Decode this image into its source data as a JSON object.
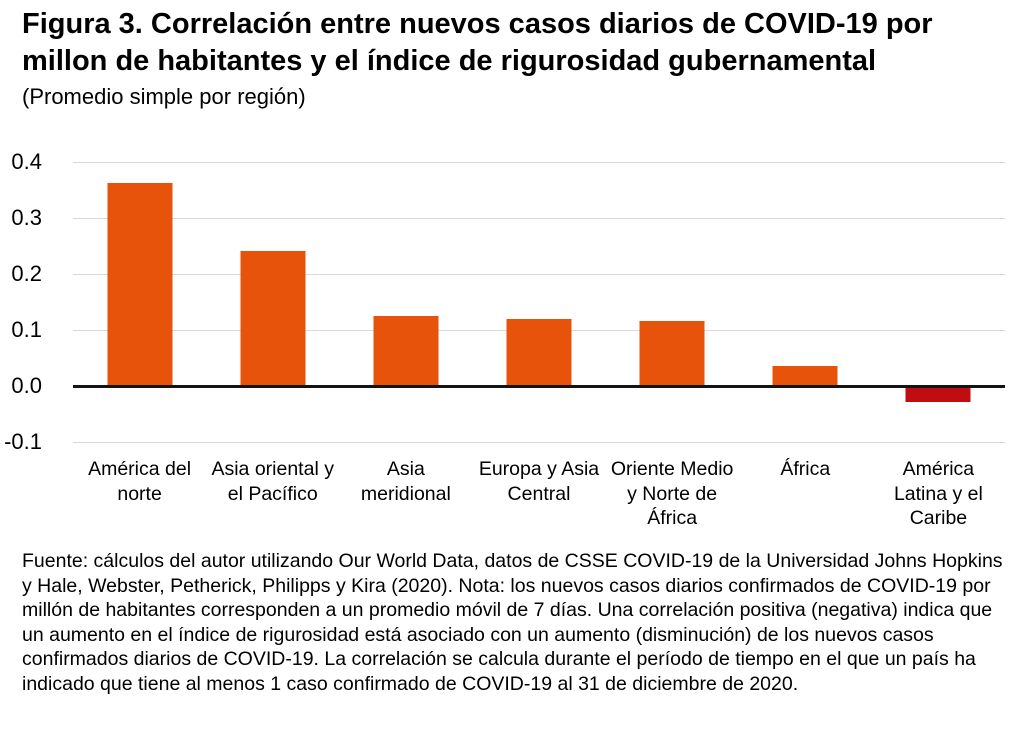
{
  "header": {
    "title": "Figura 3. Correlación entre nuevos casos diarios de COVID-19 por millon de habitantes y el índice de rigurosidad gubernamental",
    "subtitle": "(Promedio simple por región)"
  },
  "chart_data": {
    "type": "bar",
    "title": "Figura 3. Correlación entre nuevos casos diarios de COVID-19 por millon de habitantes y el índice de rigurosidad gubernamental",
    "subtitle": "(Promedio simple por región)",
    "categories": [
      "América del norte",
      "Asia oriental y el Pacífico",
      "Asia meridional",
      "Europa y Asia Central",
      "Oriente Medio y Norte de África",
      "África",
      "América Latina y el Caribe"
    ],
    "label_lines": [
      [
        "América del",
        "norte"
      ],
      [
        "Asia oriental y",
        "el Pacífico"
      ],
      [
        "Asia",
        "meridional"
      ],
      [
        "Europa y Asia",
        "Central"
      ],
      [
        "Oriente Medio",
        "y Norte de",
        "África"
      ],
      [
        "África"
      ],
      [
        "América",
        "Latina y el",
        "Caribe"
      ]
    ],
    "values": [
      0.362,
      0.242,
      0.125,
      0.12,
      0.117,
      0.036,
      -0.028
    ],
    "xlabel": "",
    "ylabel": "",
    "ylim": [
      -0.13,
      0.45
    ],
    "yticks": [
      0.4,
      0.3,
      0.2,
      0.1,
      0.0,
      -0.1
    ],
    "grid": true,
    "legend": "none",
    "bar_color": "#E8530C",
    "negative_bar_color": "#C00D11",
    "gridline_color": "#D9D9D9",
    "axis_line_color": "#141414"
  },
  "footer": {
    "source_note": "Fuente: cálculos del autor utilizando Our World Data, datos de CSSE COVID-19 de la Universidad Johns Hopkins y Hale, Webster, Petherick, Philipps y Kira (2020). Nota: los nuevos casos diarios confirmados de COVID-19 por millón de habitantes corresponden a un promedio móvil de 7 días. Una correlación positiva (negativa) indica que un aumento en el índice de rigurosidad está asociado con un aumento (disminución) de los nuevos casos confirmados diarios de COVID-19. La correlación se calcula durante el período de tiempo en el que un país ha indicado que tiene al menos 1 caso confirmado de COVID-19 al 31 de diciembre de 2020."
  }
}
